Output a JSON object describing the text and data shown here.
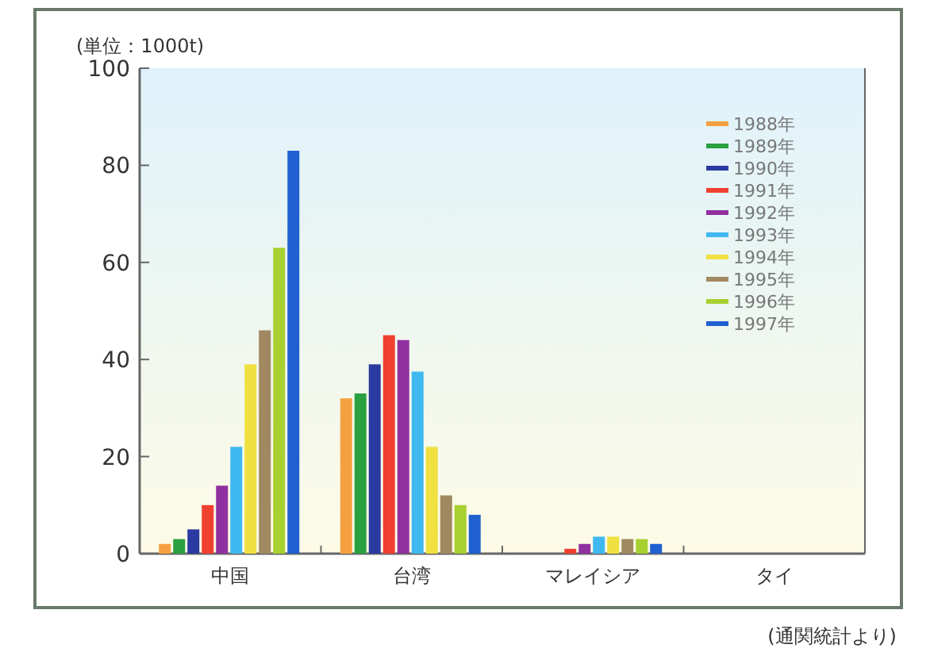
{
  "chart_data": {
    "type": "bar",
    "ylabel": "(単位：1000t)",
    "categories": [
      "中国",
      "台湾",
      "マレイシア",
      "タイ"
    ],
    "series": [
      {
        "name": "1988年",
        "color": "#f5a040",
        "values": [
          2,
          32,
          0,
          0
        ]
      },
      {
        "name": "1989年",
        "color": "#2aa040",
        "values": [
          3,
          33,
          0,
          0
        ]
      },
      {
        "name": "1990年",
        "color": "#2a3aa0",
        "values": [
          5,
          39,
          0,
          0
        ]
      },
      {
        "name": "1991年",
        "color": "#f04030",
        "values": [
          10,
          45,
          1,
          0
        ]
      },
      {
        "name": "1992年",
        "color": "#9030a0",
        "values": [
          14,
          44,
          2,
          0
        ]
      },
      {
        "name": "1993年",
        "color": "#40b8f0",
        "values": [
          22,
          37.5,
          3.5,
          0
        ]
      },
      {
        "name": "1994年",
        "color": "#f0e040",
        "values": [
          39,
          22,
          3.5,
          0
        ]
      },
      {
        "name": "1995年",
        "color": "#a08860",
        "values": [
          46,
          12,
          3,
          0
        ]
      },
      {
        "name": "1996年",
        "color": "#a8d030",
        "values": [
          63,
          10,
          3,
          0
        ]
      },
      {
        "name": "1997年",
        "color": "#2060d0",
        "values": [
          83,
          8,
          2,
          0
        ]
      }
    ],
    "ylim": [
      0,
      100
    ],
    "yticks": [
      0,
      20,
      40,
      60,
      80,
      100
    ],
    "grid": false,
    "legend": "top right",
    "annotations": [
      "(通関統計より)"
    ]
  }
}
